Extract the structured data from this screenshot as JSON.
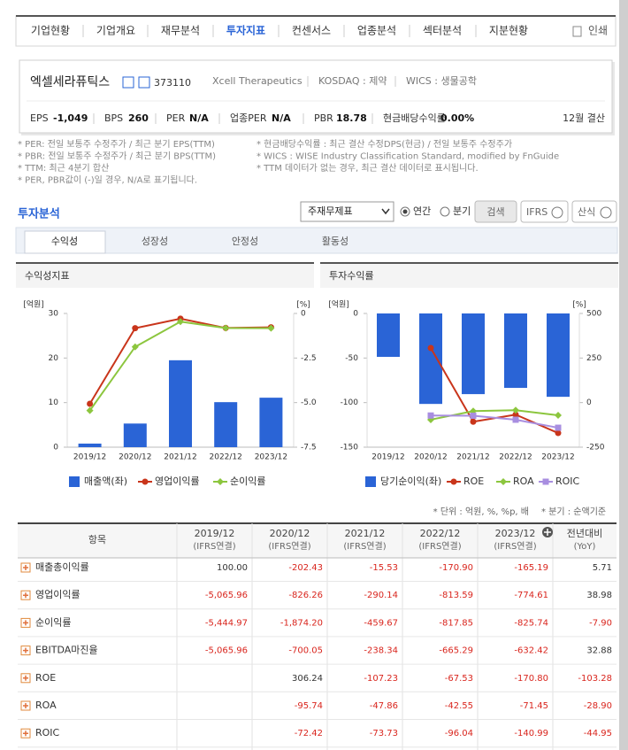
{
  "nav": {
    "tabs": [
      "기업현황",
      "기업개요",
      "재무분석",
      "투자지표",
      "컨센서스",
      "업종분석",
      "섹터분석",
      "지분현황"
    ],
    "print": "인쇄"
  },
  "company": {
    "name": "엑셀세라퓨틱스",
    "code": "373110",
    "english_name": "Xcell Therapeutics",
    "market": "KOSDAQ : 제약",
    "wics": "WICS : 생물공학",
    "metrics": [
      {
        "label": "EPS",
        "value": "-1,049"
      },
      {
        "label": "BPS",
        "value": "260"
      },
      {
        "label": "PER",
        "value": "N/A"
      },
      {
        "label": "업종PER",
        "value": "N/A"
      },
      {
        "label": "PBR",
        "value": "18.78"
      },
      {
        "label": "현금배당수익률",
        "value": "0.00%"
      }
    ],
    "fiscal": "12월 결산"
  },
  "notes_left": [
    "* PER: 전일 보통주 수정주가 / 최근 분기 EPS(TTM)",
    "* PBR: 전일 보통주 수정주가 / 최근 분기 BPS(TTM)",
    "* TTM: 최근 4분기 합산",
    "* PER, PBR값이 (-)일 경우, N/A로 표기됩니다."
  ],
  "notes_right": [
    "* 현금배당수익률 : 최근 결산 수정DPS(현금) / 전일 보통주 수정주가",
    "* WICS : WISE Industry Classification Standard, modified by FnGuide",
    "* TTM 데이터가 없는 경우, 최근 결산 데이터로 표시됩니다."
  ],
  "section": {
    "title": "투자분석",
    "select": "주재무제표",
    "radios": [
      "연간",
      "분기"
    ],
    "buttons": [
      "검색",
      "IFRS",
      "산식"
    ]
  },
  "subtabs": [
    "수익성",
    "성장성",
    "안정성",
    "활동성"
  ],
  "charts": [
    {
      "type": "combo",
      "title": "수익성지표",
      "y_unit": "[억원]",
      "y2_unit": "[%]",
      "categories": [
        "2019/12",
        "2020/12",
        "2021/12",
        "2022/12",
        "2023/12"
      ],
      "ylim": [
        0,
        30
      ],
      "yticks": [
        0,
        10,
        20,
        30
      ],
      "y2lim": [
        -7.5,
        0
      ],
      "y2ticks": [
        0,
        -2.5,
        {
          "value": -5,
          "label": "-5.0"
        },
        -7.5
      ],
      "series": [
        {
          "name": "매출액(좌)",
          "color": "#2a64d6",
          "kind": "bar",
          "values": [
            0.8,
            5.3,
            19.5,
            10.1,
            11.1
          ]
        },
        {
          "name": "영업이익률",
          "color": "#c9351b",
          "kind": "line",
          "axis": "y2",
          "marker": "circle",
          "values": [
            -5.066,
            -0.826,
            -0.29,
            -0.814,
            -0.775
          ]
        },
        {
          "name": "순이익률",
          "color": "#8cc63e",
          "kind": "line",
          "axis": "y2",
          "marker": "diamond",
          "values": [
            -5.445,
            -1.874,
            -0.46,
            -0.818,
            -0.826
          ]
        }
      ]
    },
    {
      "type": "combo",
      "title": "투자수익률",
      "y_unit": "[억원]",
      "y2_unit": "[%]",
      "categories": [
        "2019/12",
        "2020/12",
        "2021/12",
        "2022/12",
        "2023/12"
      ],
      "ylim": [
        -150,
        0
      ],
      "yticks": [
        0,
        -50,
        -100,
        -150
      ],
      "y2lim": [
        -250,
        500
      ],
      "y2ticks": [
        500,
        250,
        0,
        -250
      ],
      "series": [
        {
          "name": "당기순이익(좌)",
          "color": "#2a64d6",
          "kind": "bar",
          "values": [
            -48.7,
            -101.5,
            -90.5,
            -83.5,
            -93.5
          ]
        },
        {
          "name": "ROE",
          "color": "#c9351b",
          "kind": "line",
          "axis": "y2",
          "marker": "circle",
          "values": [
            null,
            306.24,
            -107.23,
            -67.53,
            -170.8
          ]
        },
        {
          "name": "ROA",
          "color": "#8cc63e",
          "kind": "line",
          "axis": "y2",
          "marker": "diamond",
          "values": [
            null,
            -95.74,
            -47.86,
            -42.55,
            -71.45
          ]
        },
        {
          "name": "ROIC",
          "color": "#a88ee0",
          "kind": "line",
          "axis": "y2",
          "marker": "square",
          "values": [
            null,
            -72.42,
            -73.73,
            -96.04,
            -140.99
          ]
        }
      ]
    }
  ],
  "table_notes": [
    "* 단위 : 억원, %, %p, 배",
    "* 분기 : 순액기준"
  ],
  "table": {
    "item_header": "항목",
    "columns": [
      {
        "period": "2019/12",
        "basis": "(IFRS연결)"
      },
      {
        "period": "2020/12",
        "basis": "(IFRS연결)"
      },
      {
        "period": "2021/12",
        "basis": "(IFRS연결)"
      },
      {
        "period": "2022/12",
        "basis": "(IFRS연결)"
      },
      {
        "period": "2023/12",
        "basis": "(IFRS연결)"
      },
      {
        "period": "전년대비",
        "basis": "(YoY)"
      }
    ],
    "rows": [
      {
        "label": "매출총이익률",
        "values": [
          "100.00",
          "-202.43",
          "-15.53",
          "-170.90",
          "-165.19",
          "5.71"
        ]
      },
      {
        "label": "영업이익률",
        "values": [
          "-5,065.96",
          "-826.26",
          "-290.14",
          "-813.59",
          "-774.61",
          "38.98"
        ]
      },
      {
        "label": "순이익률",
        "values": [
          "-5,444.97",
          "-1,874.20",
          "-459.67",
          "-817.85",
          "-825.74",
          "-7.90"
        ]
      },
      {
        "label": "EBITDA마진율",
        "values": [
          "-5,065.96",
          "-700.05",
          "-238.34",
          "-665.29",
          "-632.42",
          "32.88"
        ]
      },
      {
        "label": "ROE",
        "values": [
          null,
          "306.24",
          "-107.23",
          "-67.53",
          "-170.80",
          "-103.28"
        ]
      },
      {
        "label": "ROA",
        "values": [
          null,
          "-95.74",
          "-47.86",
          "-42.55",
          "-71.45",
          "-28.90"
        ]
      },
      {
        "label": "ROIC",
        "values": [
          null,
          "-72.42",
          "-73.73",
          "-96.04",
          "-140.99",
          "-44.95"
        ]
      }
    ]
  }
}
